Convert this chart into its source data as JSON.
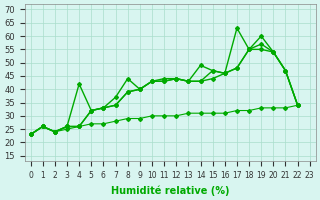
{
  "xlabel": "Humidité relative (%)",
  "ylabel_ticks": [
    15,
    20,
    25,
    30,
    35,
    40,
    45,
    50,
    55,
    60,
    65,
    70
  ],
  "xlim": [
    -0.5,
    23.5
  ],
  "ylim": [
    13,
    72
  ],
  "background_color": "#d8f5f0",
  "grid_color": "#aaddcc",
  "line_color": "#00aa00",
  "line_color2": "#00cc00",
  "xtick_labels": [
    "0",
    "1",
    "2",
    "3",
    "4",
    "5",
    "6",
    "7",
    "8",
    "9",
    "10",
    "11",
    "12",
    "13",
    "14",
    "15",
    "16",
    "17",
    "18",
    "19",
    "20",
    "21",
    "22",
    "23"
  ],
  "series": [
    [
      23,
      26,
      24,
      26,
      42,
      32,
      33,
      37,
      44,
      40,
      43,
      44,
      44,
      43,
      49,
      47,
      46,
      63,
      55,
      60,
      54,
      47,
      34,
      null
    ],
    [
      23,
      26,
      24,
      26,
      26,
      32,
      33,
      34,
      39,
      40,
      43,
      43,
      44,
      43,
      43,
      47,
      46,
      48,
      55,
      57,
      54,
      47,
      34,
      null
    ],
    [
      23,
      26,
      24,
      26,
      26,
      32,
      33,
      34,
      39,
      40,
      43,
      43,
      44,
      43,
      43,
      44,
      46,
      48,
      55,
      55,
      54,
      47,
      34,
      null
    ],
    [
      23,
      26,
      24,
      25,
      26,
      27,
      27,
      28,
      29,
      29,
      30,
      30,
      30,
      31,
      31,
      31,
      31,
      32,
      32,
      33,
      33,
      33,
      34,
      null
    ]
  ]
}
